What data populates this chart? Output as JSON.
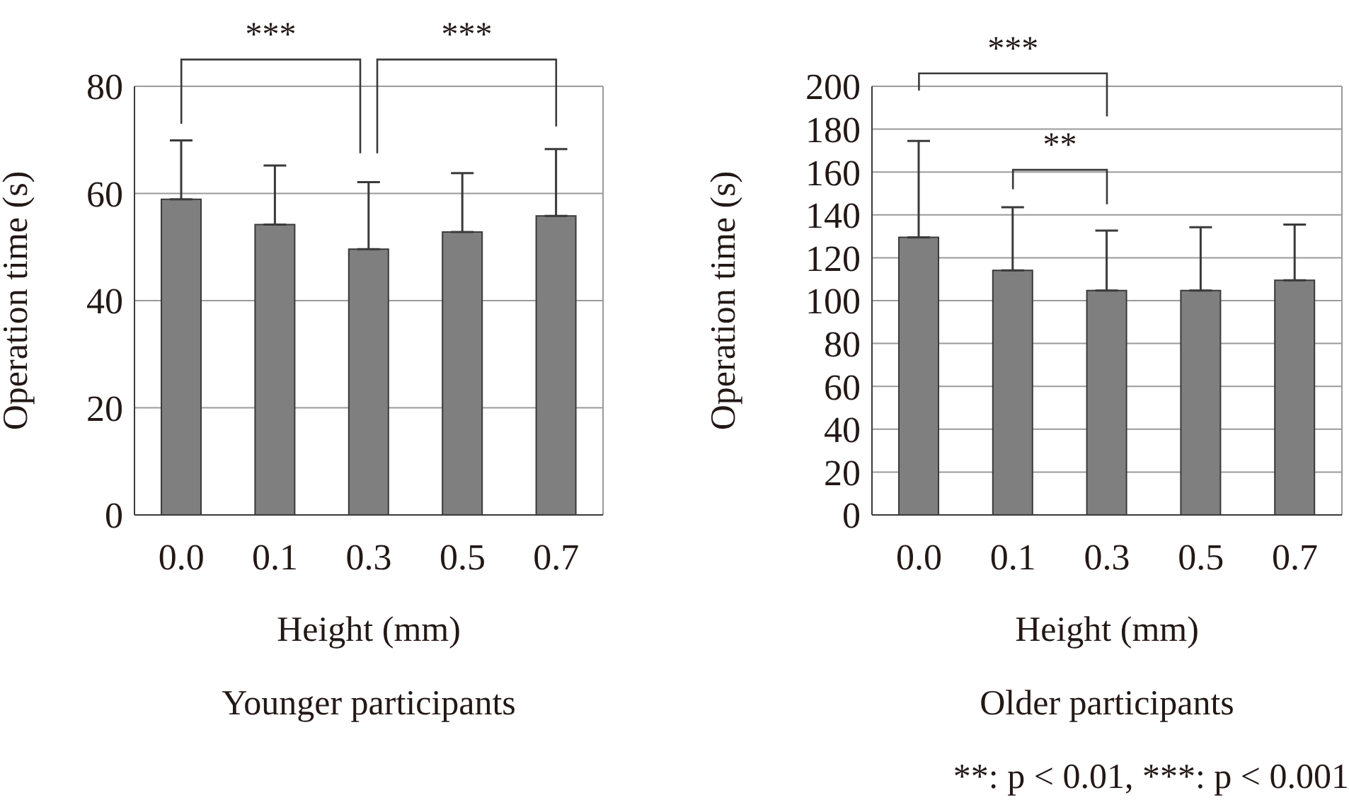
{
  "chart_data": [
    {
      "type": "bar",
      "title": "Younger participants",
      "xlabel": "Height (mm)",
      "ylabel": "Operation time (s)",
      "categories": [
        "0.0",
        "0.1",
        "0.3",
        "0.5",
        "0.7"
      ],
      "values": [
        58.9,
        54.2,
        49.6,
        52.8,
        55.8
      ],
      "errors": [
        11,
        11,
        12.5,
        11,
        12.5
      ],
      "color": "#7f7f7f",
      "ylim": [
        0,
        80
      ],
      "yticks": [
        0,
        20,
        40,
        60,
        80
      ],
      "grid": "y",
      "annotations": [
        "***",
        "***"
      ]
    },
    {
      "type": "bar",
      "title": "Older participants",
      "xlabel": "Height (mm)",
      "ylabel": "Operation time (s)",
      "categories": [
        "0.0",
        "0.1",
        "0.3",
        "0.5",
        "0.7"
      ],
      "values": [
        129.5,
        114.1,
        104.7,
        104.7,
        109.5
      ],
      "errors": [
        45,
        29.5,
        28,
        29.5,
        26
      ],
      "color": "#7f7f7f",
      "ylim": [
        0,
        200
      ],
      "yticks": [
        0,
        20,
        40,
        60,
        80,
        100,
        120,
        140,
        160,
        180,
        200
      ],
      "grid": "y",
      "annotations": [
        "***",
        "**",
        "**: p < 0.01, ***: p < 0.001"
      ]
    }
  ]
}
